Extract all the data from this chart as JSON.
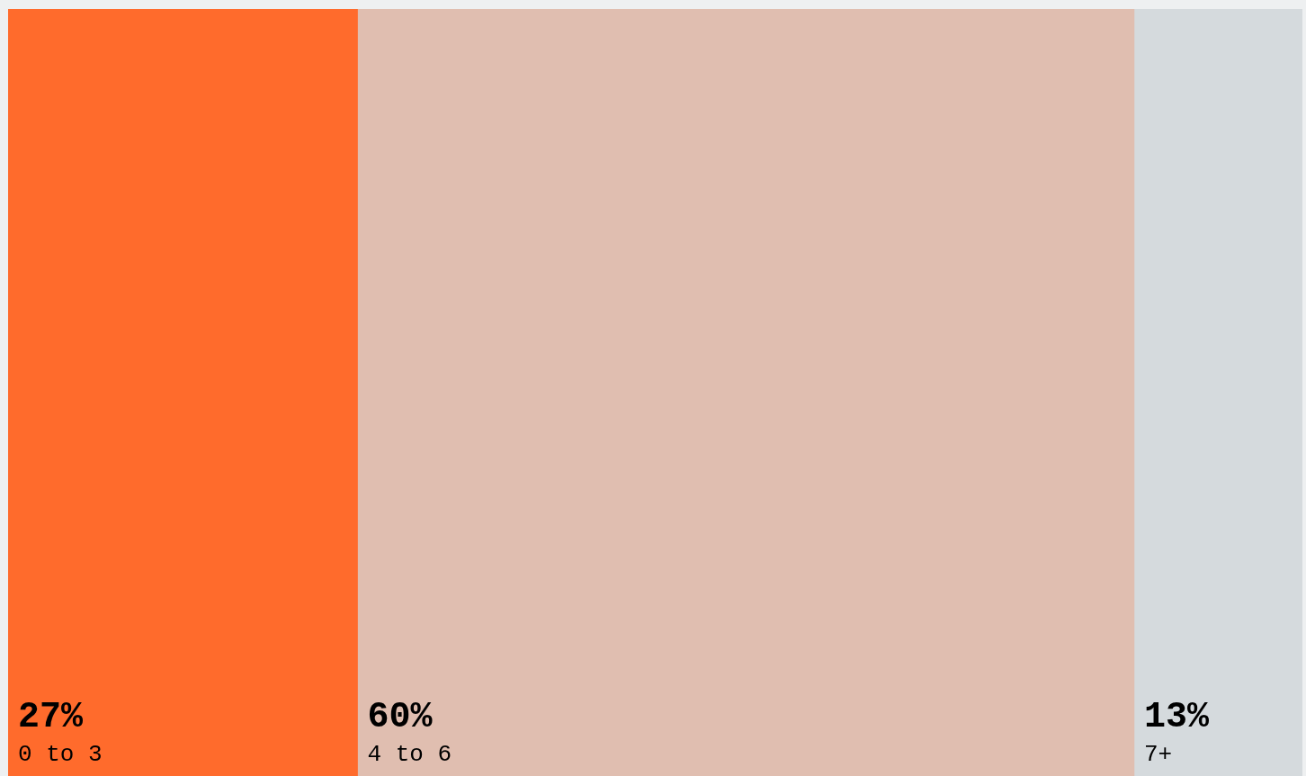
{
  "chart_data": {
    "type": "bar",
    "orientation": "horizontal",
    "stacked": true,
    "categories": [
      null
    ],
    "xlim": [
      0,
      100
    ],
    "tick_labels": false,
    "legend": false,
    "series": [
      {
        "name": "0 to 3",
        "color": "#ff6b2c",
        "values": [
          27
        ],
        "value_labels": [
          "27%"
        ]
      },
      {
        "name": "4 to 6",
        "color": "#e0beb0",
        "values": [
          60
        ],
        "value_labels": [
          "60%"
        ]
      },
      {
        "name": "7+",
        "color": "#d5dadd",
        "values": [
          13
        ],
        "value_labels": [
          "13%"
        ]
      }
    ]
  }
}
